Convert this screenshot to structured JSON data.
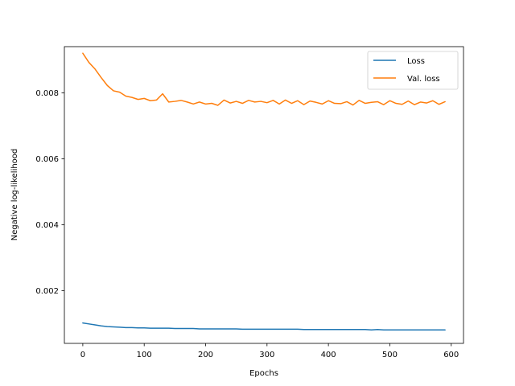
{
  "chart_data": {
    "type": "line",
    "title": "",
    "xlabel": "Epochs",
    "ylabel": "Negative log-likelihood",
    "xlim": [
      -30,
      620
    ],
    "ylim": [
      0.0004,
      0.0094
    ],
    "xticks": [
      0,
      100,
      200,
      300,
      400,
      500,
      600
    ],
    "xtick_labels": [
      "0",
      "100",
      "200",
      "300",
      "400",
      "500",
      "600"
    ],
    "yticks": [
      0.002,
      0.004,
      0.006,
      0.008
    ],
    "ytick_labels": [
      "0.002",
      "0.004",
      "0.006",
      "0.008"
    ],
    "grid": false,
    "legend_position": "top-right",
    "x": [
      0,
      10,
      20,
      30,
      40,
      50,
      60,
      70,
      80,
      90,
      100,
      110,
      120,
      130,
      140,
      150,
      160,
      170,
      180,
      190,
      200,
      210,
      220,
      230,
      240,
      250,
      260,
      270,
      280,
      290,
      300,
      310,
      320,
      330,
      340,
      350,
      360,
      370,
      380,
      390,
      400,
      410,
      420,
      430,
      440,
      450,
      460,
      470,
      480,
      490,
      500,
      510,
      520,
      530,
      540,
      550,
      560,
      570,
      580,
      590
    ],
    "series": [
      {
        "name": "Loss",
        "color": "#1f77b4",
        "values": [
          0.00102,
          0.00099,
          0.00096,
          0.00093,
          0.00091,
          0.0009,
          0.00089,
          0.00088,
          0.00088,
          0.00087,
          0.00087,
          0.00086,
          0.00086,
          0.00086,
          0.00086,
          0.00085,
          0.00085,
          0.00085,
          0.00085,
          0.00084,
          0.00084,
          0.00084,
          0.00084,
          0.00084,
          0.00084,
          0.00084,
          0.00083,
          0.00083,
          0.00083,
          0.00083,
          0.00083,
          0.00083,
          0.00083,
          0.00083,
          0.00083,
          0.00083,
          0.00082,
          0.00082,
          0.00082,
          0.00082,
          0.00082,
          0.00082,
          0.00082,
          0.00082,
          0.00082,
          0.00082,
          0.00082,
          0.00081,
          0.00082,
          0.00081,
          0.00081,
          0.00081,
          0.00081,
          0.00081,
          0.00081,
          0.00081,
          0.00081,
          0.00081,
          0.00081,
          0.00081
        ]
      },
      {
        "name": "Val. loss",
        "color": "#ff7f0e",
        "values": [
          0.0092,
          0.00892,
          0.00872,
          0.00846,
          0.00822,
          0.00806,
          0.00802,
          0.0079,
          0.00786,
          0.0078,
          0.00783,
          0.00776,
          0.00778,
          0.00797,
          0.00772,
          0.00774,
          0.00777,
          0.00772,
          0.00766,
          0.00772,
          0.00766,
          0.00768,
          0.00762,
          0.00778,
          0.00769,
          0.00774,
          0.00768,
          0.00777,
          0.00772,
          0.00774,
          0.0077,
          0.00777,
          0.00766,
          0.00778,
          0.00768,
          0.00776,
          0.00764,
          0.00775,
          0.00771,
          0.00766,
          0.00776,
          0.00768,
          0.00767,
          0.00773,
          0.00763,
          0.00777,
          0.00768,
          0.00771,
          0.00773,
          0.00764,
          0.00776,
          0.00768,
          0.00765,
          0.00775,
          0.00764,
          0.00772,
          0.00769,
          0.00776,
          0.00765,
          0.00773
        ]
      }
    ]
  }
}
